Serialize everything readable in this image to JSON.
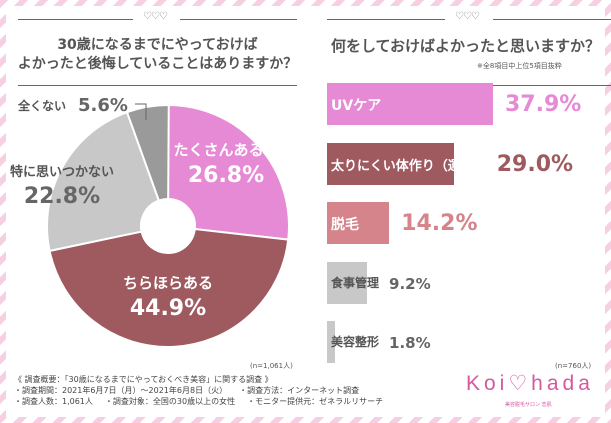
{
  "left": {
    "hearts": "♡♡♡",
    "title_line1": "30歳になるまでにやっておけば",
    "title_line2": "よかったと後悔していることはありますか？",
    "n": "(n=1,061人)"
  },
  "right": {
    "hearts": "♡♡♡",
    "title": "何をしておけばよかったと思いますか？",
    "subnote": "※全8項目中上位5項目抜粋",
    "n": "(n=760人)"
  },
  "chart_data": [
    {
      "type": "pie",
      "donut": true,
      "start": "top, clockwise",
      "slices": [
        {
          "label": "たくさんある…",
          "value": 26.8,
          "display": "26.8%",
          "color": "#e68ad6"
        },
        {
          "label": "ちらほらある",
          "value": 44.9,
          "display": "44.9%",
          "color": "#9e5a5f"
        },
        {
          "label": "特に思いつかない",
          "value": 22.8,
          "display": "22.8%",
          "color": "#c8c8c8"
        },
        {
          "label": "全くない",
          "value": 5.6,
          "display": "5.6%",
          "color": "#9a9a9a"
        }
      ]
    },
    {
      "type": "bar",
      "orientation": "horizontal",
      "categories": [
        "UVケア",
        "太りにくい体作り（運動）",
        "脱毛",
        "食事管理",
        "美容整形"
      ],
      "values": [
        37.9,
        29.0,
        14.2,
        9.2,
        1.8
      ],
      "displays": [
        "37.9%",
        "29.0%",
        "14.2%",
        "9.2%",
        "1.8%"
      ],
      "colors": [
        "#e68ad6",
        "#9e5a5f",
        "#d4848a",
        "#c8c8c8",
        "#c8c8c8"
      ]
    }
  ],
  "footer": {
    "heading": "《 調査概要：「30歳になるまでにやっておくべき美容」に関する調査 》",
    "period": "・調査期間：2021年6月7日（月）～2021年6月8日（火）",
    "method": "・調査方法：インターネット調査",
    "count": "・調査人数：1,061人",
    "target": "・調査対象：全国の30歳以上の女性",
    "provider": "・モニター提供元：ゼネラルリサーチ"
  },
  "logo": {
    "text": "Koi♡hada",
    "sub": "美容脱毛サロン 恋肌"
  }
}
